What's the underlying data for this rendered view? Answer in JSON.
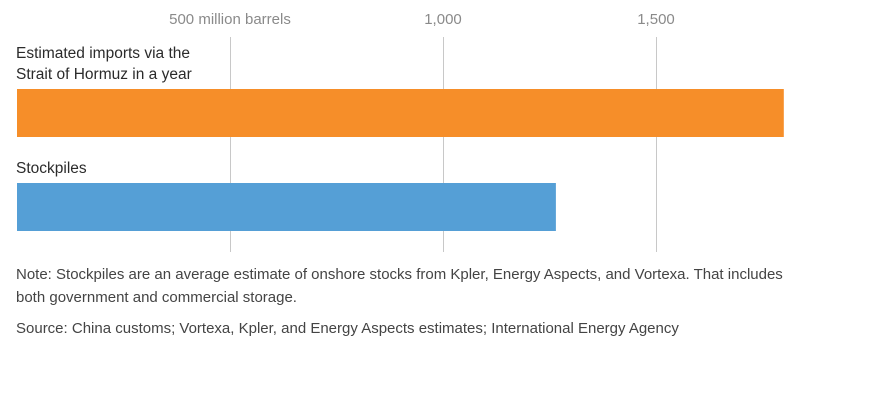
{
  "chart_data": {
    "type": "bar",
    "orientation": "horizontal",
    "categories": [
      "Estimated imports via the Strait of Hormuz in a year",
      "Stockpiles"
    ],
    "values": [
      1800,
      1265
    ],
    "unit": "million barrels",
    "xlim": [
      0,
      1800
    ],
    "xticks": [
      500,
      1000,
      1500
    ],
    "xtick_labels": [
      "500 million barrels",
      "1,000",
      "1,500"
    ],
    "category_lines": [
      [
        "Estimated imports via the",
        "Strait of Hormuz in a year"
      ],
      [
        "Stockpiles"
      ]
    ],
    "colors": [
      "#f68e29",
      "#559fd6"
    ],
    "grid": true,
    "legend": "none"
  },
  "notes": {
    "note": "Note: Stockpiles are an average estimate of onshore stocks from Kpler, Energy Aspects, and Vortexa. That includes both government and commercial storage.",
    "source": "Source: China customs; Vortexa, Kpler, and Energy Aspects estimates; International Energy Agency"
  }
}
